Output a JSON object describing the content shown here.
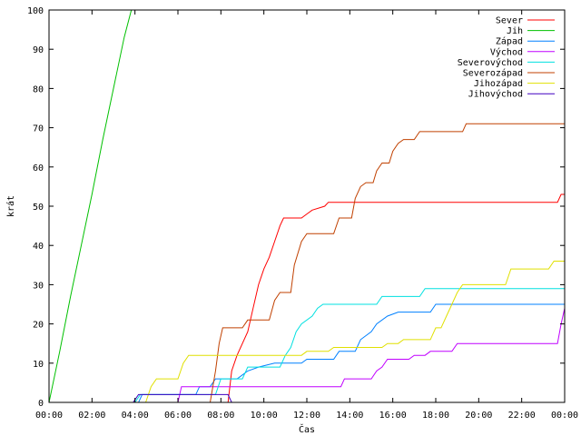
{
  "chart_data": {
    "type": "line",
    "title": "",
    "xlabel": "Čas",
    "ylabel": "krát",
    "xlim": [
      "00:00",
      "24:00"
    ],
    "ylim": [
      0,
      100
    ],
    "grid": false,
    "legend_position": "top-right",
    "x_ticks": [
      "00:00",
      "02:00",
      "04:00",
      "06:00",
      "08:00",
      "10:00",
      "12:00",
      "14:00",
      "16:00",
      "18:00",
      "20:00",
      "22:00",
      "00:00"
    ],
    "y_ticks": [
      "0",
      "10",
      "20",
      "30",
      "40",
      "50",
      "60",
      "70",
      "80",
      "90",
      "100"
    ],
    "series": [
      {
        "name": "Sever",
        "color": "#ff0000",
        "points": [
          [
            "08:20",
            0
          ],
          [
            "08:30",
            8
          ],
          [
            "08:45",
            12
          ],
          [
            "09:00",
            15
          ],
          [
            "09:15",
            18
          ],
          [
            "09:30",
            24
          ],
          [
            "09:45",
            30
          ],
          [
            "10:00",
            34
          ],
          [
            "10:15",
            37
          ],
          [
            "10:30",
            41
          ],
          [
            "10:45",
            45
          ],
          [
            "10:55",
            47
          ],
          [
            "11:45",
            47
          ],
          [
            "12:00",
            48
          ],
          [
            "12:15",
            49
          ],
          [
            "12:50",
            50
          ],
          [
            "13:00",
            51
          ],
          [
            "23:40",
            51
          ],
          [
            "23:50",
            53
          ],
          [
            "24:00",
            53
          ]
        ]
      },
      {
        "name": "Jih",
        "color": "#00c000",
        "points": [
          [
            "00:00",
            0
          ],
          [
            "00:30",
            13
          ],
          [
            "01:00",
            27
          ],
          [
            "01:30",
            40
          ],
          [
            "02:00",
            53
          ],
          [
            "02:30",
            67
          ],
          [
            "03:00",
            80
          ],
          [
            "03:30",
            93
          ],
          [
            "03:50",
            100
          ]
        ]
      },
      {
        "name": "Západ",
        "color": "#0080ff",
        "points": [
          [
            "04:10",
            0
          ],
          [
            "04:20",
            2
          ],
          [
            "06:50",
            2
          ],
          [
            "07:00",
            4
          ],
          [
            "07:30",
            4
          ],
          [
            "07:45",
            6
          ],
          [
            "08:45",
            6
          ],
          [
            "09:00",
            7
          ],
          [
            "09:15",
            8
          ],
          [
            "09:45",
            9
          ],
          [
            "10:30",
            10
          ],
          [
            "11:45",
            10
          ],
          [
            "12:00",
            11
          ],
          [
            "13:15",
            11
          ],
          [
            "13:30",
            13
          ],
          [
            "14:15",
            13
          ],
          [
            "14:30",
            16
          ],
          [
            "15:00",
            18
          ],
          [
            "15:15",
            20
          ],
          [
            "15:45",
            22
          ],
          [
            "16:15",
            23
          ],
          [
            "17:45",
            23
          ],
          [
            "18:00",
            25
          ],
          [
            "24:00",
            25
          ]
        ]
      },
      {
        "name": "Východ",
        "color": "#c000ff",
        "points": [
          [
            "06:00",
            0
          ],
          [
            "06:10",
            4
          ],
          [
            "13:35",
            4
          ],
          [
            "13:45",
            6
          ],
          [
            "15:00",
            6
          ],
          [
            "15:15",
            8
          ],
          [
            "15:30",
            9
          ],
          [
            "15:45",
            11
          ],
          [
            "16:45",
            11
          ],
          [
            "17:00",
            12
          ],
          [
            "17:30",
            12
          ],
          [
            "17:45",
            13
          ],
          [
            "18:45",
            13
          ],
          [
            "19:00",
            15
          ],
          [
            "23:40",
            15
          ],
          [
            "23:50",
            20
          ],
          [
            "24:00",
            24
          ]
        ]
      },
      {
        "name": "Severovýchod",
        "color": "#00e0e0",
        "points": [
          [
            "04:00",
            0
          ],
          [
            "04:15",
            2
          ],
          [
            "07:45",
            2
          ],
          [
            "08:00",
            6
          ],
          [
            "09:00",
            6
          ],
          [
            "09:15",
            9
          ],
          [
            "10:45",
            9
          ],
          [
            "11:00",
            12
          ],
          [
            "11:15",
            14
          ],
          [
            "11:30",
            18
          ],
          [
            "11:45",
            20
          ],
          [
            "12:15",
            22
          ],
          [
            "12:30",
            24
          ],
          [
            "12:45",
            25
          ],
          [
            "15:15",
            25
          ],
          [
            "15:30",
            27
          ],
          [
            "17:15",
            27
          ],
          [
            "17:30",
            29
          ],
          [
            "24:00",
            29
          ]
        ]
      },
      {
        "name": "Severozápad",
        "color": "#c04000",
        "points": [
          [
            "07:30",
            0
          ],
          [
            "07:45",
            8
          ],
          [
            "07:55",
            15
          ],
          [
            "08:05",
            19
          ],
          [
            "09:00",
            19
          ],
          [
            "09:15",
            21
          ],
          [
            "10:15",
            21
          ],
          [
            "10:30",
            26
          ],
          [
            "10:45",
            28
          ],
          [
            "11:15",
            28
          ],
          [
            "11:25",
            35
          ],
          [
            "11:45",
            41
          ],
          [
            "12:00",
            43
          ],
          [
            "13:15",
            43
          ],
          [
            "13:30",
            47
          ],
          [
            "14:05",
            47
          ],
          [
            "14:15",
            52
          ],
          [
            "14:30",
            55
          ],
          [
            "14:45",
            56
          ],
          [
            "15:05",
            56
          ],
          [
            "15:15",
            59
          ],
          [
            "15:30",
            61
          ],
          [
            "15:50",
            61
          ],
          [
            "16:00",
            64
          ],
          [
            "16:15",
            66
          ],
          [
            "16:30",
            67
          ],
          [
            "17:00",
            67
          ],
          [
            "17:15",
            69
          ],
          [
            "19:15",
            69
          ],
          [
            "19:25",
            71
          ],
          [
            "24:00",
            71
          ]
        ]
      },
      {
        "name": "Jihozápad",
        "color": "#e0e000",
        "points": [
          [
            "04:30",
            0
          ],
          [
            "04:45",
            4
          ],
          [
            "05:00",
            6
          ],
          [
            "06:00",
            6
          ],
          [
            "06:15",
            10
          ],
          [
            "06:30",
            12
          ],
          [
            "11:45",
            12
          ],
          [
            "12:00",
            13
          ],
          [
            "13:00",
            13
          ],
          [
            "13:15",
            14
          ],
          [
            "15:30",
            14
          ],
          [
            "15:45",
            15
          ],
          [
            "16:15",
            15
          ],
          [
            "16:30",
            16
          ],
          [
            "17:45",
            16
          ],
          [
            "18:00",
            19
          ],
          [
            "18:15",
            19
          ],
          [
            "18:30",
            22
          ],
          [
            "18:45",
            25
          ],
          [
            "19:00",
            28
          ],
          [
            "19:15",
            30
          ],
          [
            "21:15",
            30
          ],
          [
            "21:30",
            34
          ],
          [
            "23:15",
            34
          ],
          [
            "23:30",
            36
          ],
          [
            "24:00",
            36
          ]
        ]
      },
      {
        "name": "Jihovýchod",
        "color": "#4000c0",
        "points": [
          [
            "03:55",
            0
          ],
          [
            "04:10",
            2
          ],
          [
            "08:20",
            2
          ],
          [
            "08:30",
            0
          ]
        ]
      }
    ]
  }
}
